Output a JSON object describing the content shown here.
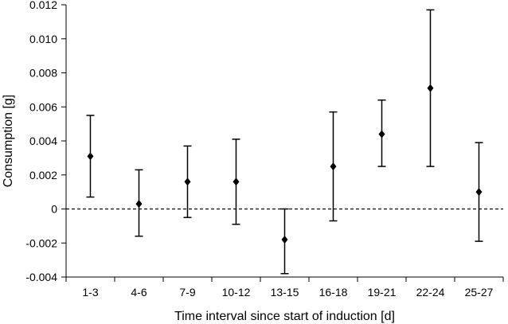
{
  "chart_data": {
    "type": "scatter",
    "title": "",
    "xlabel": "Time interval since start of induction [d]",
    "ylabel": "Consumption [g]",
    "ylim": [
      -0.004,
      0.012
    ],
    "yticks": [
      "-0.004",
      "-0.002",
      "0",
      "0.002",
      "0.004",
      "0.006",
      "0.008",
      "0.010",
      "0.012"
    ],
    "categories": [
      "1-3",
      "4-6",
      "7-9",
      "10-12",
      "13-15",
      "16-18",
      "19-21",
      "22-24",
      "25-27"
    ],
    "values": [
      0.0031,
      0.0003,
      0.0016,
      0.0016,
      -0.0018,
      0.0025,
      0.0044,
      0.0071,
      0.001
    ],
    "error_low": [
      0.0007,
      -0.0016,
      -0.0005,
      -0.0009,
      -0.0038,
      -0.0007,
      0.0025,
      0.0025,
      -0.0019
    ],
    "error_high": [
      0.0055,
      0.0023,
      0.0037,
      0.0041,
      0.0,
      0.0057,
      0.0064,
      0.0117,
      0.0039
    ],
    "zero_line": "dashed",
    "grid": false,
    "marker": "diamond",
    "color": "#000000"
  }
}
